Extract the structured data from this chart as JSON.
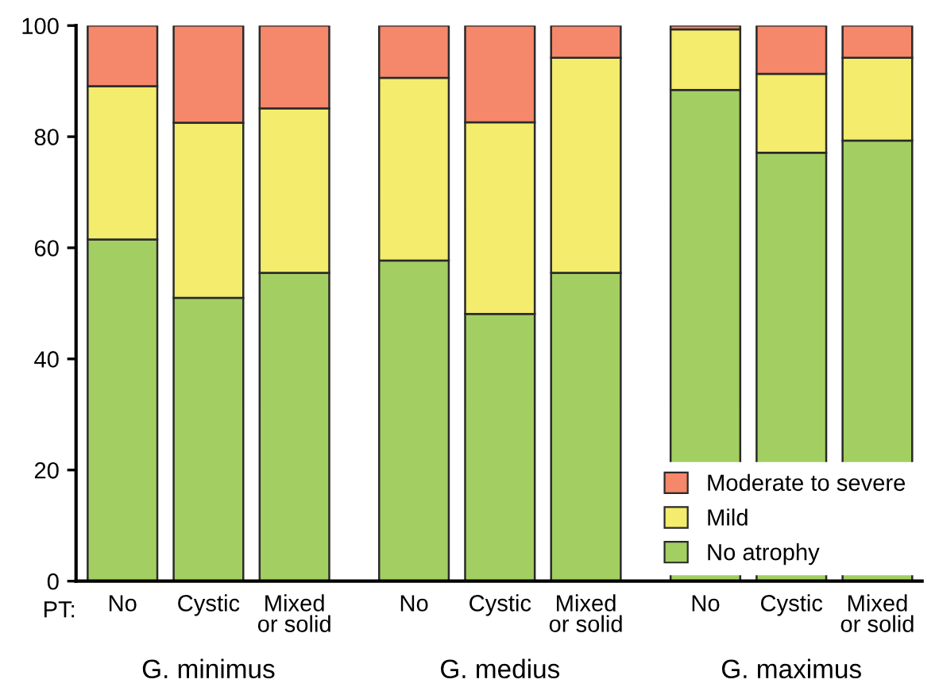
{
  "chart_data": {
    "type": "bar",
    "stacked": true,
    "categories": [
      "No",
      "Cystic",
      "Mixed\nor solid",
      "No",
      "Cystic",
      "Mixed\nor solid",
      "No",
      "Cystic",
      "Mixed\nor solid"
    ],
    "series": [
      {
        "name": "No atrophy",
        "color": "#a3cf62",
        "values": [
          61.5,
          51.0,
          55.5,
          57.7,
          48.1,
          55.5,
          88.4,
          77.1,
          79.3
        ]
      },
      {
        "name": "Mild",
        "color": "#f3ec6c",
        "values": [
          27.6,
          31.5,
          29.6,
          32.9,
          34.5,
          38.7,
          10.9,
          14.2,
          14.9
        ]
      },
      {
        "name": "Moderate to severe",
        "color": "#f5876a",
        "values": [
          10.9,
          17.5,
          14.9,
          9.4,
          17.4,
          5.8,
          0.7,
          8.7,
          5.8
        ]
      }
    ],
    "ylim": [
      0,
      100
    ],
    "yticks": [
      0,
      20,
      40,
      60,
      80,
      100
    ],
    "annotations": [
      "PT:",
      "G. minimus",
      "G. medius",
      "G. maximus"
    ],
    "legend": "bottom right",
    "grid": false
  }
}
